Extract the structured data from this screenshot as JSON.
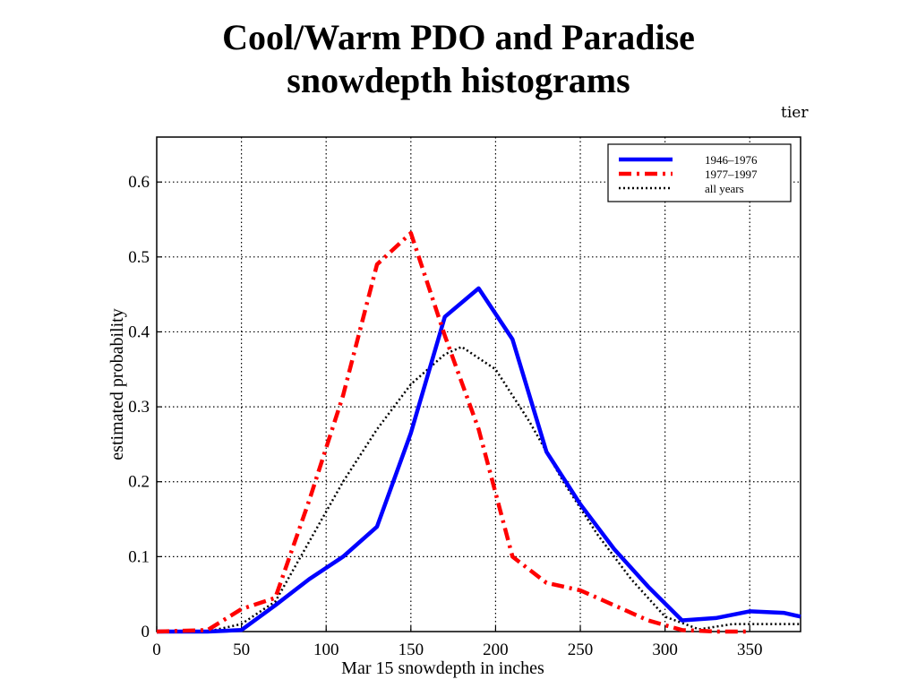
{
  "slide": {
    "title_line1": "Cool/Warm PDO and Paradise",
    "title_line2": "snowdepth histograms",
    "corner_fragment": "tier"
  },
  "chart_data": {
    "type": "line",
    "xlabel": "Mar 15  snowdepth in inches",
    "ylabel": "estimated probability",
    "xlim": [
      0,
      380
    ],
    "ylim": [
      0,
      0.66
    ],
    "xticks": [
      0,
      50,
      100,
      150,
      200,
      250,
      300,
      350
    ],
    "yticks": [
      0,
      0.1,
      0.2,
      0.3,
      0.4,
      0.5,
      0.6
    ],
    "xtick_labels": [
      "0",
      "50",
      "100",
      "150",
      "200",
      "250",
      "300",
      "350"
    ],
    "ytick_labels": [
      "0",
      "0.1",
      "0.2",
      "0.3",
      "0.4",
      "0.5",
      "0.6"
    ],
    "grid": true,
    "legend_position": "top-right",
    "series": [
      {
        "name": "1946–1976",
        "color": "#0000ff",
        "style": "solid",
        "x": [
          0,
          30,
          50,
          70,
          90,
          110,
          130,
          150,
          170,
          190,
          210,
          230,
          250,
          270,
          290,
          310,
          330,
          350,
          370,
          380
        ],
        "y": [
          0,
          0,
          0.002,
          0.035,
          0.07,
          0.1,
          0.14,
          0.265,
          0.42,
          0.458,
          0.39,
          0.24,
          0.17,
          0.11,
          0.06,
          0.015,
          0.018,
          0.027,
          0.025,
          0.02
        ]
      },
      {
        "name": "1977–1997",
        "color": "#ff0000",
        "style": "dashdot",
        "x": [
          0,
          30,
          50,
          70,
          90,
          110,
          130,
          150,
          170,
          190,
          210,
          230,
          250,
          270,
          290,
          310,
          330,
          350
        ],
        "y": [
          0,
          0.002,
          0.03,
          0.045,
          0.175,
          0.315,
          0.49,
          0.532,
          0.395,
          0.27,
          0.1,
          0.065,
          0.055,
          0.035,
          0.015,
          0.002,
          0,
          0
        ]
      },
      {
        "name": "all years",
        "color": "#000000",
        "style": "dotted",
        "x": [
          0,
          30,
          50,
          70,
          90,
          110,
          130,
          150,
          170,
          180,
          200,
          220,
          240,
          260,
          280,
          300,
          320,
          340,
          360,
          380
        ],
        "y": [
          0,
          0,
          0.01,
          0.04,
          0.12,
          0.2,
          0.27,
          0.33,
          0.37,
          0.38,
          0.35,
          0.28,
          0.2,
          0.13,
          0.07,
          0.02,
          0.003,
          0.01,
          0.01,
          0.01
        ]
      }
    ]
  }
}
